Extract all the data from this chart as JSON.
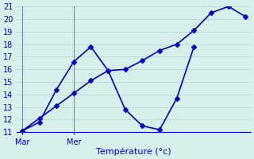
{
  "line1_x": [
    0,
    1,
    2,
    3,
    4,
    5,
    6,
    7,
    8,
    9,
    10
  ],
  "line1_y": [
    11.1,
    11.8,
    14.4,
    16.6,
    17.8,
    15.9,
    12.8,
    11.5,
    11.2,
    13.7,
    17.8
  ],
  "line2_x": [
    0,
    1,
    2,
    3,
    4,
    5,
    6,
    7,
    8,
    9,
    10,
    11,
    12,
    13
  ],
  "line2_y": [
    11.1,
    12.1,
    13.1,
    14.1,
    15.1,
    15.9,
    16.0,
    16.7,
    17.5,
    18.0,
    19.1,
    20.5,
    21.0,
    20.2
  ],
  "line_color": "#0000cc",
  "marker": "D",
  "markersize": 3,
  "linewidth": 1.2,
  "ylim": [
    11,
    21
  ],
  "yticks": [
    11,
    12,
    13,
    14,
    15,
    16,
    17,
    18,
    19,
    20,
    21
  ],
  "xlim": [
    -0.3,
    13.3
  ],
  "xtick_positions": [
    0,
    3
  ],
  "xtick_labels": [
    "Mar",
    "Mer"
  ],
  "xlabel": "Température (°c)",
  "xlabel_fontsize": 8,
  "tick_fontsize": 7,
  "bg_color": "#d8f0ec",
  "grid_color": "#b8d8d4",
  "axis_color": "#0000cc",
  "vline_x": [
    0,
    3
  ]
}
